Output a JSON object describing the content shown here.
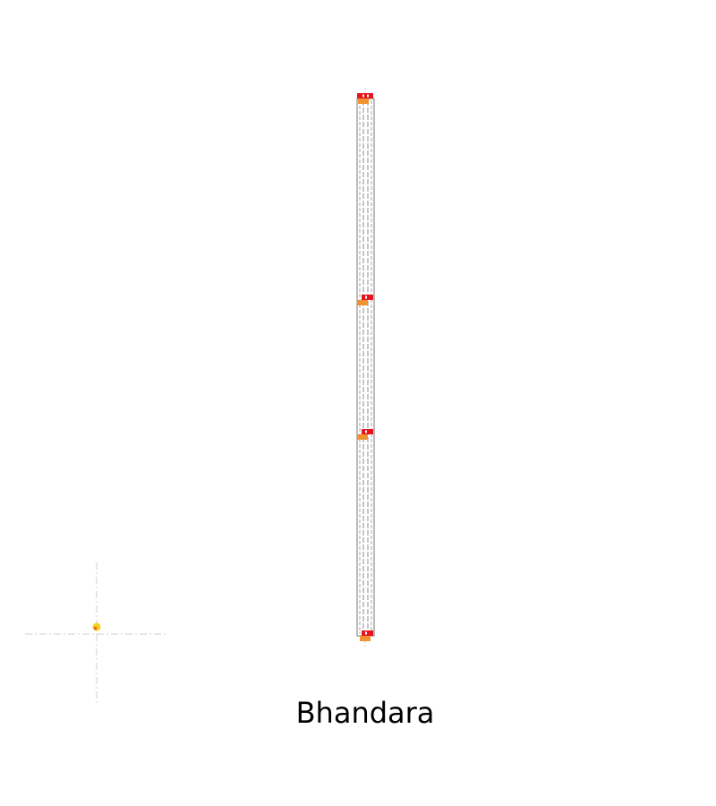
{
  "caption": "Bhandara",
  "colors": {
    "background": "#ffffff",
    "track_outline": "#7a7a7a",
    "track_dash": "#a6a6a6",
    "crosshair": "#cfcfcf",
    "marker_red": "#e8141c",
    "marker_orange": "#f0922f",
    "marker_white": "#ffffff",
    "origin_dot": "#f4d21e",
    "origin_dot_inner": "#e86a10",
    "text": "#000000"
  },
  "diagram": {
    "track_count": 2,
    "marker_count": 4,
    "origin_marker": "yellow-dot",
    "marker_icon": "red-flag-with-orange-base"
  }
}
